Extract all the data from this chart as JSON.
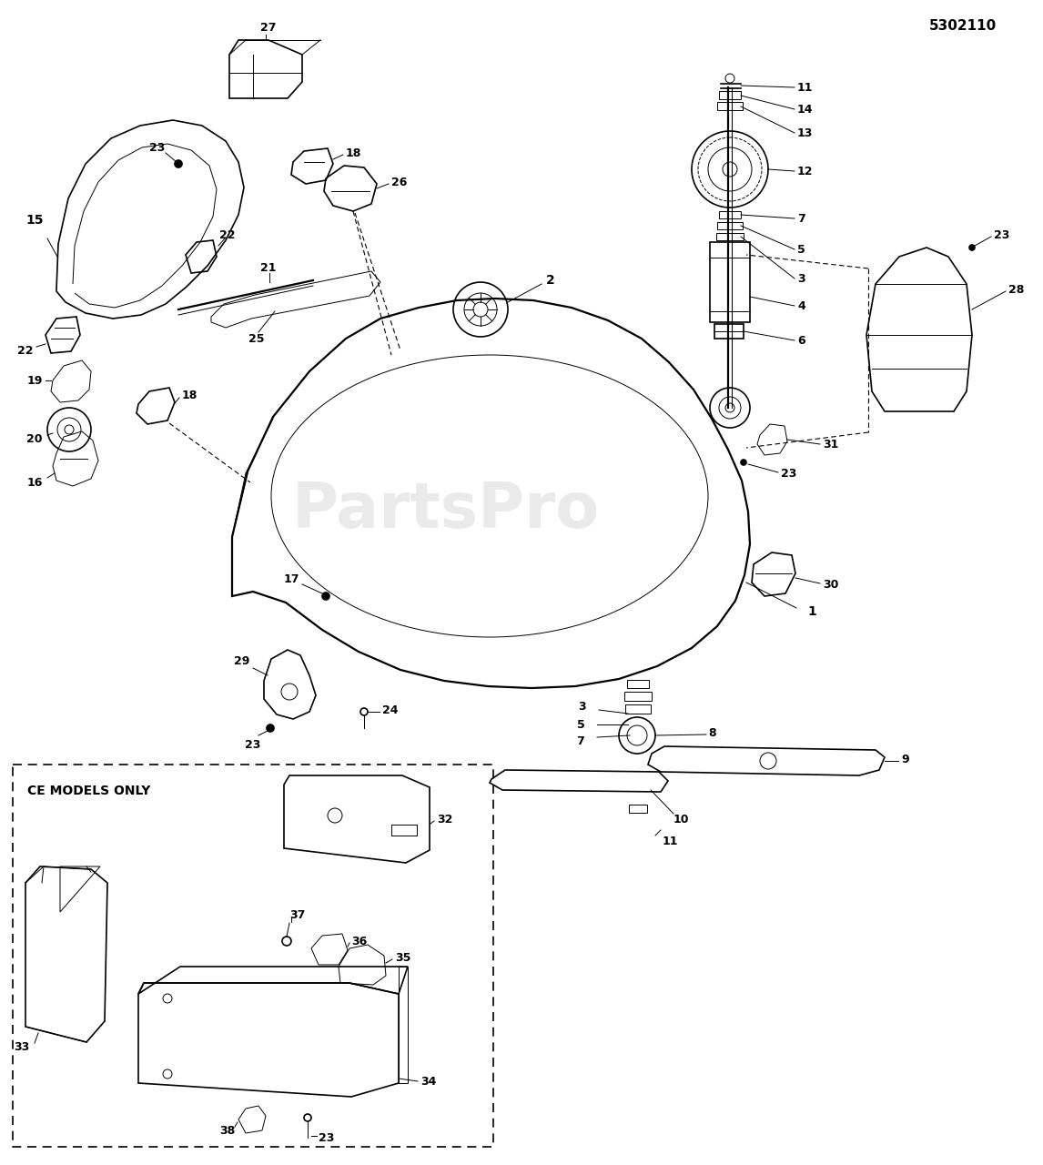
{
  "title": "5302110",
  "background_color": "#ffffff",
  "line_color": "#000000",
  "watermark_text": "PartsPro",
  "watermark_color": "#cccccc",
  "watermark_alpha": 0.4,
  "ce_label": "CE MODELS ONLY",
  "figsize": [
    11.46,
    12.8
  ],
  "dpi": 100
}
